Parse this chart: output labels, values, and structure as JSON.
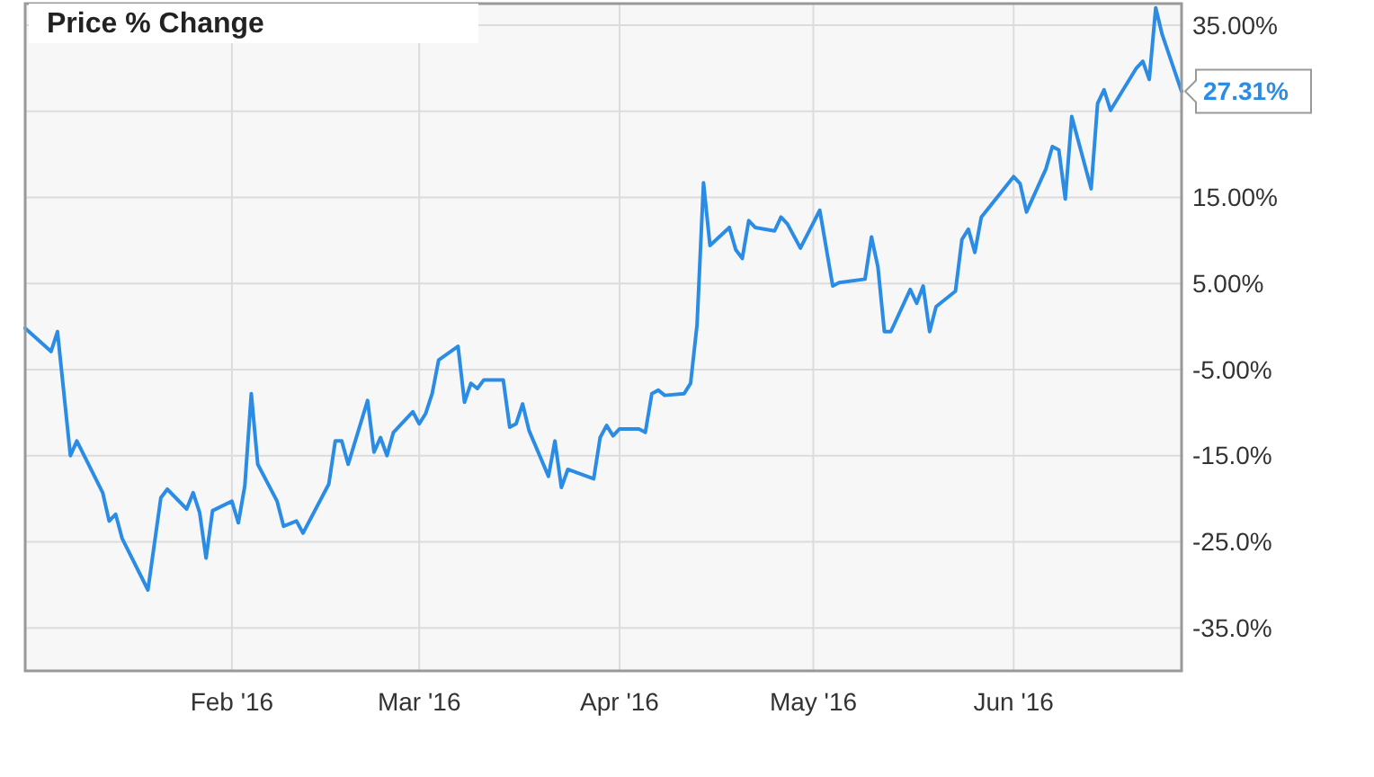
{
  "chart_data": {
    "type": "line",
    "title": "Price % Change",
    "x": [
      "2015-12-31",
      "2016-01-04",
      "2016-01-05",
      "2016-01-07",
      "2016-01-08",
      "2016-01-12",
      "2016-01-13",
      "2016-01-14",
      "2016-01-15",
      "2016-01-19",
      "2016-01-21",
      "2016-01-22",
      "2016-01-25",
      "2016-01-26",
      "2016-01-27",
      "2016-01-28",
      "2016-01-29",
      "2016-02-01",
      "2016-02-02",
      "2016-02-03",
      "2016-02-04",
      "2016-02-05",
      "2016-02-08",
      "2016-02-09",
      "2016-02-11",
      "2016-02-12",
      "2016-02-16",
      "2016-02-17",
      "2016-02-18",
      "2016-02-19",
      "2016-02-22",
      "2016-02-23",
      "2016-02-24",
      "2016-02-25",
      "2016-02-26",
      "2016-02-29",
      "2016-03-01",
      "2016-03-02",
      "2016-03-03",
      "2016-03-04",
      "2016-03-07",
      "2016-03-08",
      "2016-03-09",
      "2016-03-10",
      "2016-03-11",
      "2016-03-14",
      "2016-03-15",
      "2016-03-16",
      "2016-03-17",
      "2016-03-18",
      "2016-03-21",
      "2016-03-22",
      "2016-03-23",
      "2016-03-24",
      "2016-03-28",
      "2016-03-29",
      "2016-03-30",
      "2016-03-31",
      "2016-04-01",
      "2016-04-04",
      "2016-04-05",
      "2016-04-06",
      "2016-04-07",
      "2016-04-08",
      "2016-04-11",
      "2016-04-12",
      "2016-04-13",
      "2016-04-14",
      "2016-04-15",
      "2016-04-18",
      "2016-04-19",
      "2016-04-20",
      "2016-04-21",
      "2016-04-22",
      "2016-04-25",
      "2016-04-26",
      "2016-04-27",
      "2016-04-29",
      "2016-05-02",
      "2016-05-04",
      "2016-05-05",
      "2016-05-09",
      "2016-05-10",
      "2016-05-11",
      "2016-05-12",
      "2016-05-13",
      "2016-05-16",
      "2016-05-17",
      "2016-05-18",
      "2016-05-19",
      "2016-05-20",
      "2016-05-23",
      "2016-05-24",
      "2016-05-25",
      "2016-05-26",
      "2016-05-27",
      "2016-06-01",
      "2016-06-02",
      "2016-06-03",
      "2016-06-06",
      "2016-06-07",
      "2016-06-08",
      "2016-06-09",
      "2016-06-10",
      "2016-06-13",
      "2016-06-14",
      "2016-06-15",
      "2016-06-16",
      "2016-06-20",
      "2016-06-21",
      "2016-06-22",
      "2016-06-23",
      "2016-06-24",
      "2016-06-27"
    ],
    "series": [
      {
        "color": "#2b8ce6",
        "values": [
          -0.2,
          -2.9,
          -0.6,
          -15,
          -13.3,
          -19.3,
          -22.6,
          -21.8,
          -24.6,
          -30.6,
          -19.9,
          -18.9,
          -21.2,
          -19.3,
          -21.6,
          -26.9,
          -21.4,
          -20.3,
          -22.8,
          -18.5,
          -7.8,
          -16,
          -20.3,
          -23.2,
          -22.6,
          -24,
          -18.3,
          -13.3,
          -13.3,
          -16,
          -8.6,
          -14.6,
          -12.9,
          -15,
          -12.3,
          -9.9,
          -11.3,
          -10.1,
          -7.8,
          -3.9,
          -2.3,
          -8.8,
          -6.6,
          -7.2,
          -6.2,
          -6.2,
          -11.7,
          -11.3,
          -9,
          -12.1,
          -17.4,
          -13.3,
          -18.7,
          -16.6,
          -17.7,
          -12.9,
          -11.5,
          -12.7,
          -11.9,
          -11.9,
          -12.3,
          -7.8,
          -7.4,
          -8,
          -7.8,
          -6.6,
          0.2,
          16.7,
          9.4,
          11.5,
          8.9,
          7.9,
          12.3,
          11.5,
          11.1,
          12.7,
          11.9,
          9.1,
          13.5,
          4.7,
          5.1,
          5.5,
          10.4,
          6.9,
          -0.6,
          -0.6,
          4.3,
          2.7,
          4.7,
          -0.6,
          2.3,
          4.1,
          10.1,
          11.3,
          8.6,
          12.7,
          17.4,
          16.6,
          13.3,
          18.3,
          20.9,
          20.5,
          14.8,
          24.4,
          16,
          25.9,
          27.5,
          25.1,
          30,
          30.8,
          28.7,
          37,
          33.9,
          27.31
        ]
      }
    ],
    "xlim": [
      "2015-12-31",
      "2016-06-27"
    ],
    "xticks": [
      {
        "value": "2016-02-01",
        "label": "Feb '16"
      },
      {
        "value": "2016-03-01",
        "label": "Mar '16"
      },
      {
        "value": "2016-04-01",
        "label": "Apr '16"
      },
      {
        "value": "2016-05-01",
        "label": "May '16"
      },
      {
        "value": "2016-06-01",
        "label": "Jun '16"
      }
    ],
    "ylim": [
      -40,
      37.5
    ],
    "yticks": [
      {
        "value": 35,
        "label": "35.00%"
      },
      {
        "value": 25,
        "label": null
      },
      {
        "value": 15,
        "label": "15.00%"
      },
      {
        "value": 5,
        "label": "5.00%"
      },
      {
        "value": -5,
        "label": "-5.00%"
      },
      {
        "value": -15,
        "label": "-15.0%"
      },
      {
        "value": -25,
        "label": "-25.0%"
      },
      {
        "value": -35,
        "label": "-35.0%"
      }
    ],
    "annotations": [
      {
        "text": "27.31%",
        "x": "2016-06-27",
        "y": 27.31
      }
    ],
    "grid": true,
    "marker": "none",
    "line_style": "solid"
  }
}
